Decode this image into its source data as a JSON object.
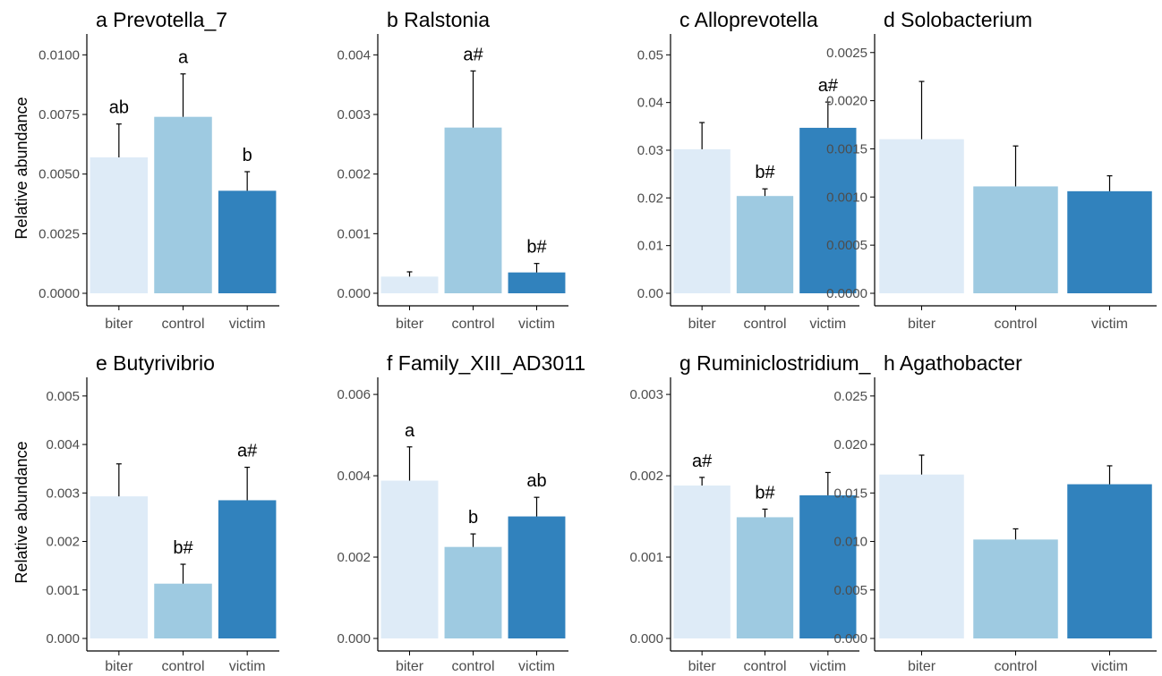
{
  "figure": {
    "ylabel": "Relative abundance"
  },
  "colors": {
    "biter": "#deebf7",
    "control": "#9ecae1",
    "victim": "#3182bd",
    "axis": "#000000",
    "text": "#4d4d4d"
  },
  "chart_data": [
    {
      "type": "bar",
      "panel": "a",
      "title": "Prevotella_7",
      "categories": [
        "biter",
        "control",
        "victim"
      ],
      "values": [
        0.0057,
        0.0074,
        0.0043
      ],
      "errors": [
        0.0014,
        0.0018,
        0.0008
      ],
      "labels": [
        "ab",
        "a",
        "b"
      ],
      "ylim": [
        0,
        0.0105
      ],
      "yticks": [
        "0.0000",
        "0.0025",
        "0.0050",
        "0.0075",
        "0.0100"
      ],
      "ylabel": "Relative abundance"
    },
    {
      "type": "bar",
      "panel": "b",
      "title": "Ralstonia",
      "categories": [
        "biter",
        "control",
        "victim"
      ],
      "values": [
        0.00028,
        0.00278,
        0.00035
      ],
      "errors": [
        8e-05,
        0.00095,
        0.00015
      ],
      "labels": [
        "",
        "a#",
        "b#"
      ],
      "ylim": [
        0,
        0.0042
      ],
      "yticks": [
        "0.000",
        "0.001",
        "0.002",
        "0.003",
        "0.004"
      ],
      "ylabel": ""
    },
    {
      "type": "bar",
      "panel": "c",
      "title": "Alloprevotella",
      "categories": [
        "biter",
        "control",
        "victim"
      ],
      "values": [
        0.0302,
        0.0204,
        0.0347
      ],
      "errors": [
        0.0056,
        0.0015,
        0.0054
      ],
      "labels": [
        "",
        "b#",
        "a#"
      ],
      "ylim": [
        0,
        0.0525
      ],
      "yticks": [
        "0.00",
        "0.01",
        "0.02",
        "0.03",
        "0.04",
        "0.05"
      ],
      "ylabel": ""
    },
    {
      "type": "bar",
      "panel": "d",
      "title": "Solobacterium",
      "categories": [
        "biter",
        "control",
        "victim"
      ],
      "values": [
        0.0016,
        0.00111,
        0.00106
      ],
      "errors": [
        0.0006,
        0.00042,
        0.00016
      ],
      "labels": [
        "",
        "",
        ""
      ],
      "ylim": [
        0,
        0.0026
      ],
      "yticks": [
        "0.0000",
        "0.0005",
        "0.0010",
        "0.0015",
        "0.0020",
        "0.0025"
      ],
      "ylabel": ""
    },
    {
      "type": "bar",
      "panel": "e",
      "title": "Butyrivibrio",
      "categories": [
        "biter",
        "control",
        "victim"
      ],
      "values": [
        0.00293,
        0.00113,
        0.00285
      ],
      "errors": [
        0.00067,
        0.0004,
        0.00068
      ],
      "labels": [
        "",
        "b#",
        "a#"
      ],
      "ylim": [
        0,
        0.0052
      ],
      "yticks": [
        "0.000",
        "0.001",
        "0.002",
        "0.003",
        "0.004",
        "0.005"
      ],
      "ylabel": "Relative abundance"
    },
    {
      "type": "bar",
      "panel": "f",
      "title": "Family_XIII_AD3011",
      "categories": [
        "biter",
        "control",
        "victim"
      ],
      "values": [
        0.00388,
        0.00225,
        0.003
      ],
      "errors": [
        0.00083,
        0.00032,
        0.00047
      ],
      "labels": [
        "a",
        "b",
        "ab"
      ],
      "ylim": [
        0,
        0.0062
      ],
      "yticks": [
        "0.000",
        "0.002",
        "0.004",
        "0.006"
      ],
      "ylabel": ""
    },
    {
      "type": "bar",
      "panel": "g",
      "title": "Ruminiclostridium_",
      "categories": [
        "biter",
        "control",
        "victim"
      ],
      "values": [
        0.00188,
        0.00149,
        0.00176
      ],
      "errors": [
        0.0001,
        0.0001,
        0.00028
      ],
      "labels": [
        "a#",
        "b#",
        ""
      ],
      "ylim": [
        0,
        0.0031
      ],
      "yticks": [
        "0.000",
        "0.001",
        "0.002",
        "0.003"
      ],
      "ylabel": ""
    },
    {
      "type": "bar",
      "panel": "h",
      "title": "Agathobacter",
      "categories": [
        "biter",
        "control",
        "victim"
      ],
      "values": [
        0.0169,
        0.0102,
        0.0159
      ],
      "errors": [
        0.002,
        0.0011,
        0.0019
      ],
      "labels": [
        "",
        "",
        ""
      ],
      "ylim": [
        0,
        0.026
      ],
      "yticks": [
        "0.000",
        "0.005",
        "0.010",
        "0.015",
        "0.020",
        "0.025"
      ],
      "ylabel": ""
    }
  ]
}
